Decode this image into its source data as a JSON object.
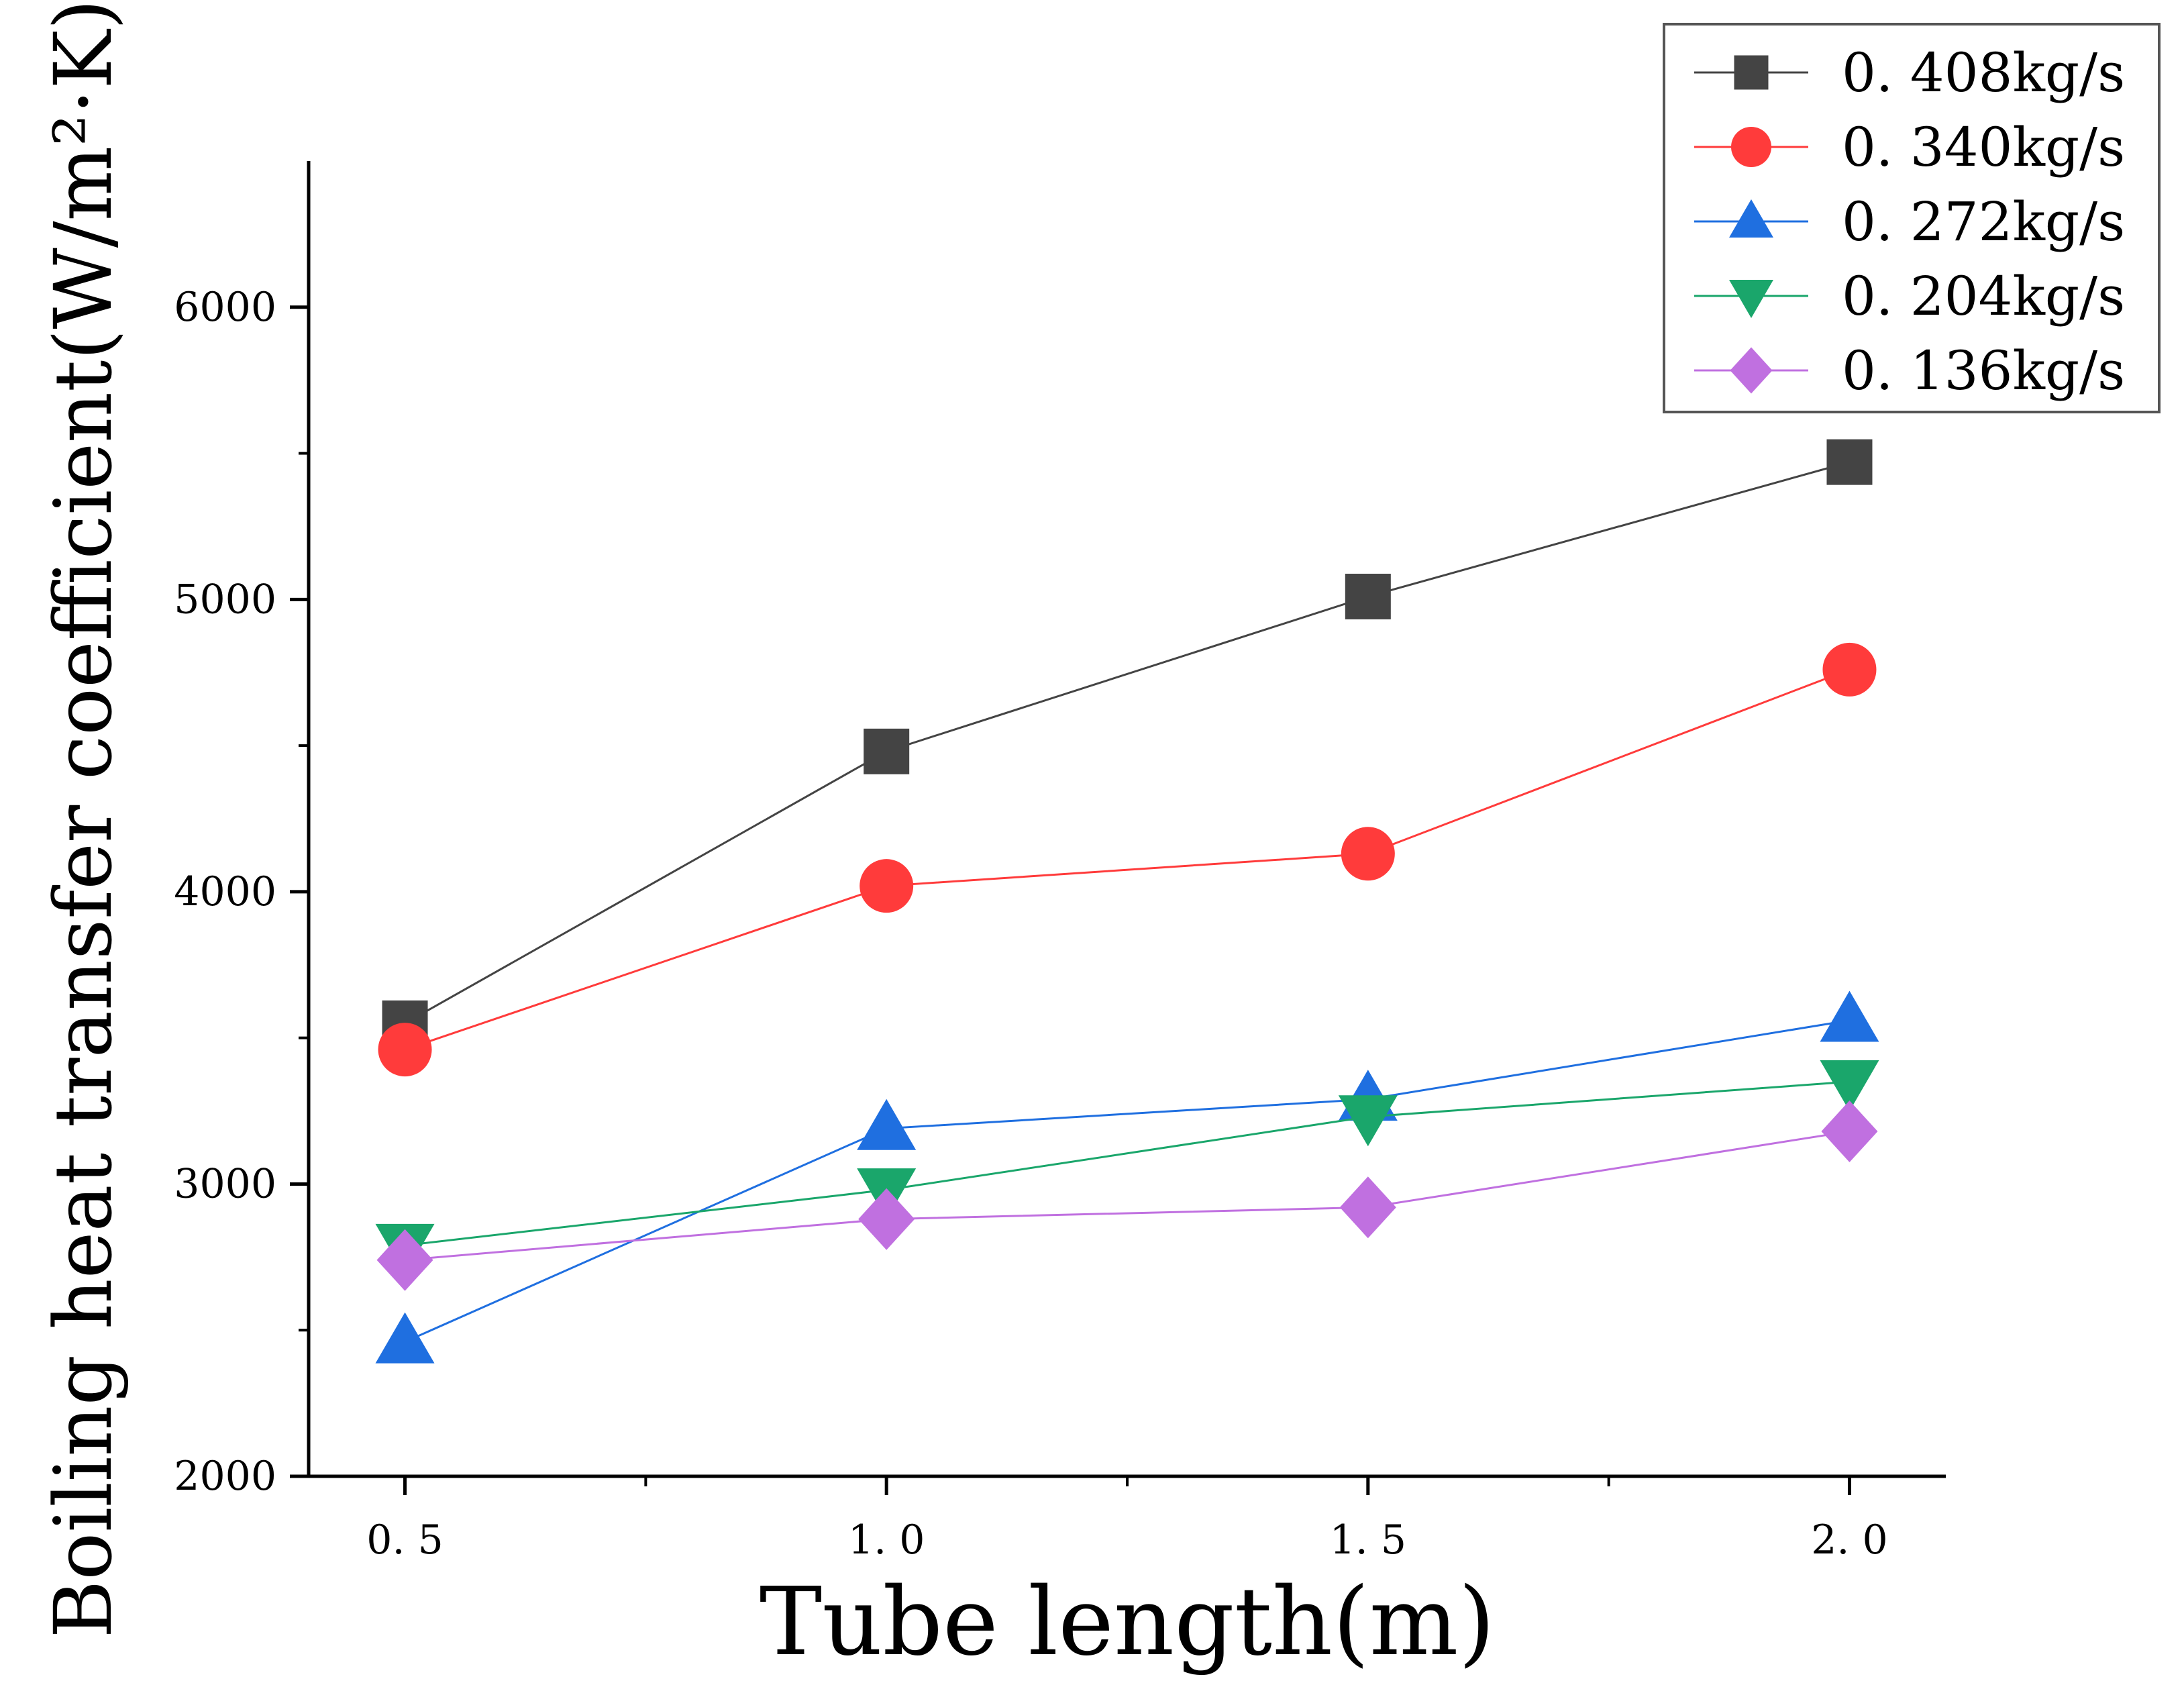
{
  "chart_data": {
    "type": "line",
    "xlabel": "Tube length(m)",
    "ylabel": "Boiling heat transfer coefficient(W/m²·K)",
    "x": [
      0.5,
      1.0,
      1.5,
      2.0
    ],
    "x_tick_labels": [
      "0. 5",
      "1. 0",
      "1. 5",
      "2. 0"
    ],
    "xlim": [
      0.4,
      2.1
    ],
    "ylim": [
      2000,
      6500
    ],
    "y_ticks": [
      2000,
      3000,
      4000,
      5000,
      6000
    ],
    "y_tick_labels": [
      "2000",
      "3000",
      "4000",
      "5000",
      "6000"
    ],
    "grid": false,
    "legend_position": "top-right",
    "series": [
      {
        "name": "0. 408kg/s",
        "marker": "square",
        "color": "#444444",
        "values": [
          3550,
          4480,
          5010,
          5470
        ]
      },
      {
        "name": "0. 340kg/s",
        "marker": "circle",
        "color": "#ff3b3b",
        "values": [
          3460,
          4020,
          4130,
          4760
        ]
      },
      {
        "name": "0. 272kg/s",
        "marker": "triangle-up",
        "color": "#1f6fe0",
        "values": [
          2460,
          3190,
          3290,
          3560
        ]
      },
      {
        "name": "0. 204kg/s",
        "marker": "triangle-down",
        "color": "#1aa66b",
        "values": [
          2790,
          2980,
          3230,
          3350
        ]
      },
      {
        "name": "0. 136kg/s",
        "marker": "diamond",
        "color": "#c070e0",
        "values": [
          2740,
          2880,
          2920,
          3180
        ]
      }
    ]
  }
}
